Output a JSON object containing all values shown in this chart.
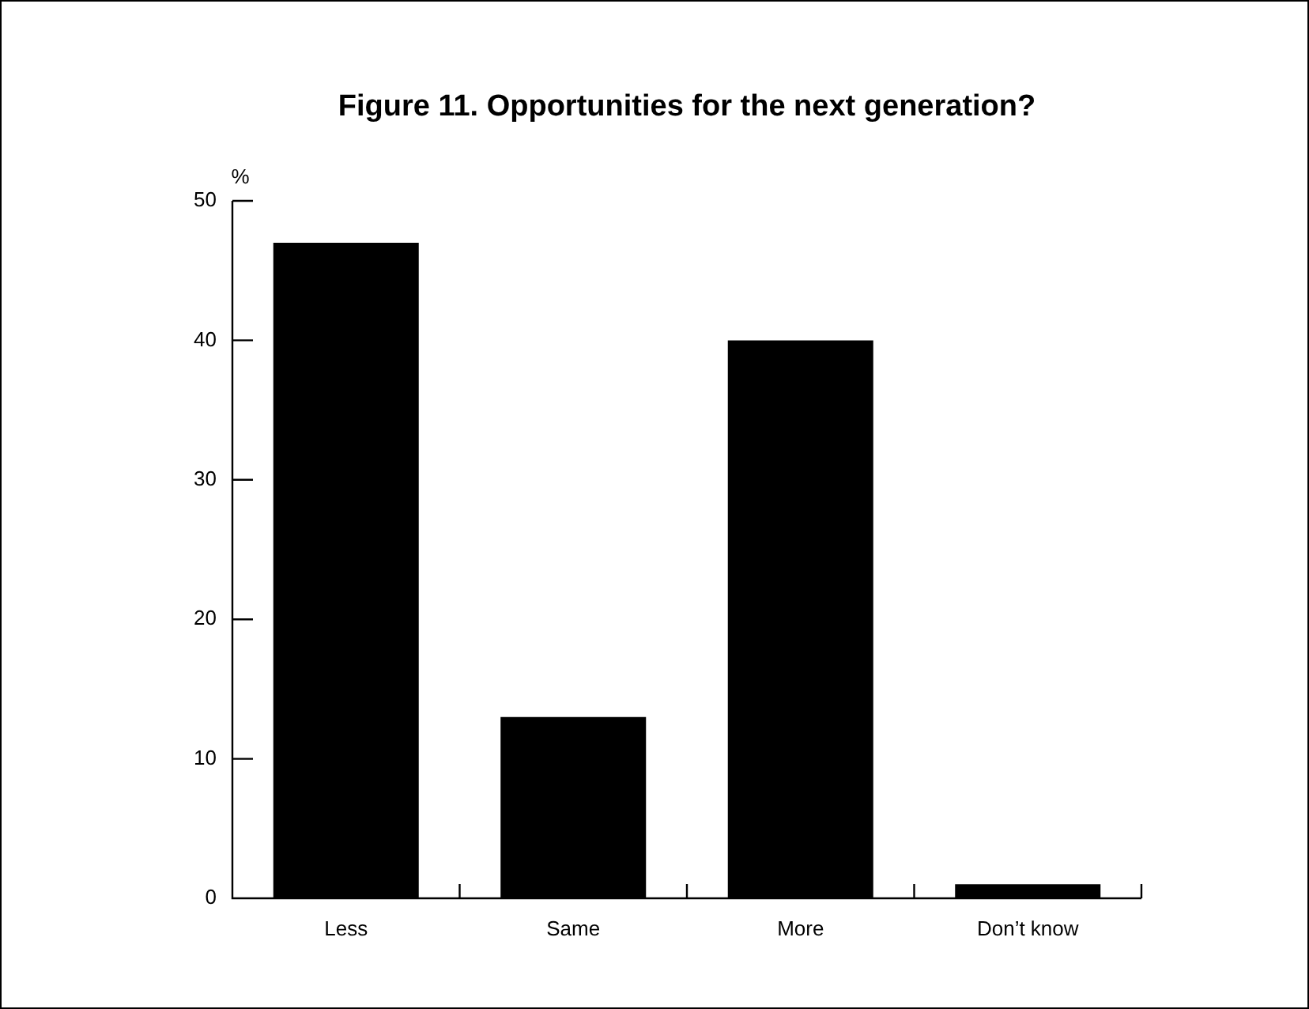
{
  "chart_data": {
    "type": "bar",
    "title": "Figure 11. Opportunities for the next generation?",
    "ylabel": "%",
    "categories": [
      "Less",
      "Same",
      "More",
      "Don’t know"
    ],
    "values": [
      47,
      13,
      40,
      1
    ],
    "color": "#000000",
    "ylim": [
      0,
      50
    ],
    "yticks": [
      0,
      10,
      20,
      30,
      40,
      50
    ],
    "grid": false,
    "legend": false
  }
}
